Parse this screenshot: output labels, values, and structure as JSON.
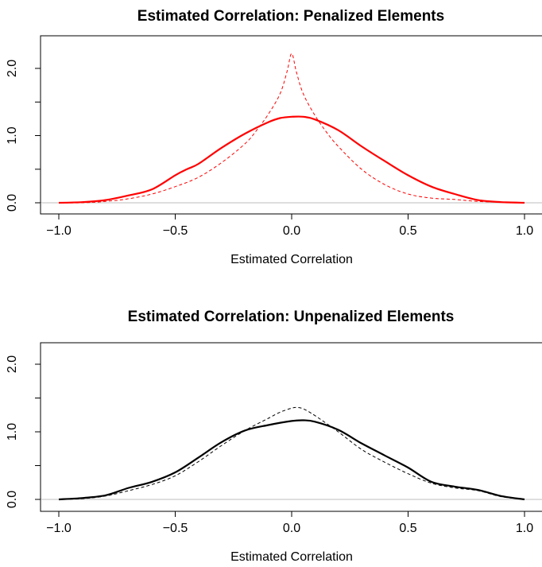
{
  "chart_data": [
    {
      "type": "line",
      "title": "Estimated Correlation: Penalized Elements",
      "xlabel": "Estimated Correlation",
      "ylabel": "",
      "xlim": [
        -1.0,
        1.0
      ],
      "ylim": [
        0.0,
        2.25
      ],
      "xticks": [
        "−1.0",
        "−0.5",
        "0.0",
        "0.5",
        "1.0"
      ],
      "yticks": [
        "0.0",
        "1.0",
        "2.0"
      ],
      "grid": false,
      "baseline_color": "#bebebe",
      "series": [
        {
          "style": "solid",
          "color": "#ff0000",
          "x": [
            -1.0,
            -0.9,
            -0.8,
            -0.7,
            -0.6,
            -0.5,
            -0.45,
            -0.4,
            -0.3,
            -0.2,
            -0.1,
            -0.05,
            0.0,
            0.05,
            0.1,
            0.2,
            0.3,
            0.4,
            0.5,
            0.6,
            0.7,
            0.8,
            0.9,
            1.0
          ],
          "y": [
            0.0,
            0.01,
            0.04,
            0.11,
            0.2,
            0.41,
            0.5,
            0.58,
            0.82,
            1.03,
            1.2,
            1.26,
            1.28,
            1.28,
            1.24,
            1.08,
            0.84,
            0.62,
            0.41,
            0.24,
            0.13,
            0.04,
            0.01,
            0.0
          ]
        },
        {
          "style": "dashed",
          "color": "#ff0000",
          "x": [
            -1.0,
            -0.9,
            -0.8,
            -0.7,
            -0.6,
            -0.5,
            -0.4,
            -0.3,
            -0.2,
            -0.15,
            -0.1,
            -0.05,
            -0.02,
            0.0,
            0.02,
            0.05,
            0.1,
            0.15,
            0.2,
            0.3,
            0.4,
            0.5,
            0.6,
            0.7,
            0.8,
            0.9,
            1.0
          ],
          "y": [
            0.0,
            0.0,
            0.02,
            0.06,
            0.13,
            0.24,
            0.38,
            0.6,
            0.88,
            1.08,
            1.32,
            1.62,
            1.95,
            2.22,
            1.95,
            1.62,
            1.3,
            1.05,
            0.84,
            0.5,
            0.27,
            0.13,
            0.07,
            0.05,
            0.02,
            0.01,
            0.0
          ]
        }
      ]
    },
    {
      "type": "line",
      "title": "Estimated Correlation: Unpenalized Elements",
      "xlabel": "Estimated Correlation",
      "ylabel": "",
      "xlim": [
        -1.0,
        1.0
      ],
      "ylim": [
        0.0,
        2.25
      ],
      "xticks": [
        "−1.0",
        "−0.5",
        "0.0",
        "0.5",
        "1.0"
      ],
      "yticks": [
        "0.0",
        "1.0",
        "2.0"
      ],
      "grid": false,
      "baseline_color": "#bebebe",
      "series": [
        {
          "style": "solid",
          "color": "#000000",
          "x": [
            -1.0,
            -0.9,
            -0.8,
            -0.7,
            -0.6,
            -0.5,
            -0.4,
            -0.3,
            -0.2,
            -0.1,
            0.0,
            0.05,
            0.1,
            0.2,
            0.3,
            0.4,
            0.5,
            0.6,
            0.7,
            0.8,
            0.9,
            1.0
          ],
          "y": [
            0.0,
            0.02,
            0.06,
            0.17,
            0.26,
            0.4,
            0.62,
            0.85,
            1.02,
            1.1,
            1.16,
            1.17,
            1.15,
            1.03,
            0.83,
            0.65,
            0.47,
            0.26,
            0.19,
            0.14,
            0.05,
            0.0
          ]
        },
        {
          "style": "dashed",
          "color": "#000000",
          "x": [
            -1.0,
            -0.9,
            -0.8,
            -0.7,
            -0.6,
            -0.5,
            -0.4,
            -0.3,
            -0.2,
            -0.1,
            -0.05,
            0.0,
            0.02,
            0.05,
            0.1,
            0.2,
            0.3,
            0.4,
            0.5,
            0.6,
            0.7,
            0.8,
            0.9,
            1.0
          ],
          "y": [
            0.0,
            0.01,
            0.05,
            0.13,
            0.22,
            0.35,
            0.56,
            0.8,
            1.02,
            1.2,
            1.29,
            1.35,
            1.36,
            1.34,
            1.24,
            1.0,
            0.74,
            0.55,
            0.38,
            0.24,
            0.17,
            0.13,
            0.04,
            0.0
          ]
        }
      ]
    }
  ]
}
